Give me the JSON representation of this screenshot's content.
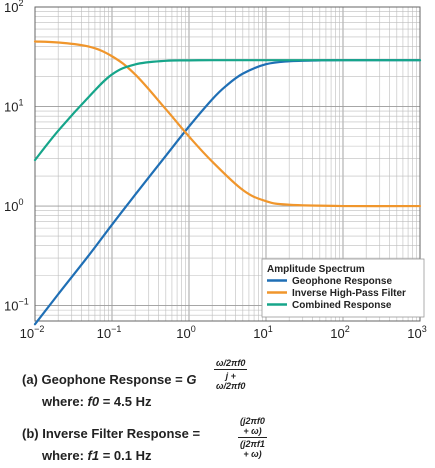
{
  "chart_data": {
    "type": "line",
    "title": "",
    "xlabel": "",
    "ylabel": "",
    "x_scale": "log",
    "y_scale": "log",
    "xlim": [
      0.01,
      1000
    ],
    "ylim": [
      0.07,
      100
    ],
    "grid": true,
    "x_ticks": [
      {
        "base": "10",
        "exp": "−2",
        "value": 0.01
      },
      {
        "base": "10",
        "exp": "−1",
        "value": 0.1
      },
      {
        "base": "10",
        "exp": "0",
        "value": 1
      },
      {
        "base": "10",
        "exp": "1",
        "value": 10
      },
      {
        "base": "10",
        "exp": "2",
        "value": 100
      },
      {
        "base": "10",
        "exp": "3",
        "value": 1000
      }
    ],
    "y_ticks": [
      {
        "base": "10",
        "exp": "−1",
        "value": 0.1
      },
      {
        "base": "10",
        "exp": "0",
        "value": 1
      },
      {
        "base": "10",
        "exp": "1",
        "value": 10
      },
      {
        "base": "10",
        "exp": "2",
        "value": 100
      }
    ],
    "legend": {
      "title": "Amplitude Spectrum",
      "position": "bottom-right"
    },
    "series": [
      {
        "name": "Geophone Response",
        "color": "#1f6fb5",
        "x": [
          0.01,
          0.02,
          0.05,
          0.1,
          0.2,
          0.5,
          1,
          2,
          3,
          5,
          10,
          20,
          50,
          100,
          1000
        ],
        "y": [
          0.065,
          0.13,
          0.32,
          0.65,
          1.3,
          3.2,
          6.3,
          11.8,
          16.0,
          21.4,
          26.6,
          28.5,
          29.1,
          29.2,
          29.2
        ]
      },
      {
        "name": "Inverse High-Pass Filter",
        "color": "#f0962c",
        "x": [
          0.01,
          0.02,
          0.05,
          0.1,
          0.2,
          0.5,
          1,
          2,
          5,
          10,
          20,
          100,
          1000
        ],
        "y": [
          45,
          44,
          40,
          32,
          21,
          9.4,
          5.0,
          2.8,
          1.45,
          1.12,
          1.03,
          1.0,
          1.0
        ]
      },
      {
        "name": "Combined Response",
        "color": "#16a58a",
        "x": [
          0.01,
          0.02,
          0.05,
          0.1,
          0.2,
          0.5,
          1,
          2,
          5,
          10,
          100,
          1000
        ],
        "y": [
          2.9,
          5.7,
          12.5,
          21,
          26.5,
          28.8,
          29.1,
          29.2,
          29.2,
          29.2,
          29.2,
          29.2
        ]
      }
    ]
  },
  "formulas": {
    "a": {
      "label": "(a) Geophone Response = ",
      "G": "G",
      "num": "ω/2πf0",
      "den": "j + ω/2πf0",
      "where": "where: ",
      "var": "f0",
      "val": " = 4.5 Hz"
    },
    "b": {
      "label": "(b) Inverse Filter Response = ",
      "num": "(j2πf0 + ω)",
      "den": "(j2πf1 + ω)",
      "where": "where: ",
      "var": "f1",
      "val": " = 0.1 Hz"
    }
  }
}
